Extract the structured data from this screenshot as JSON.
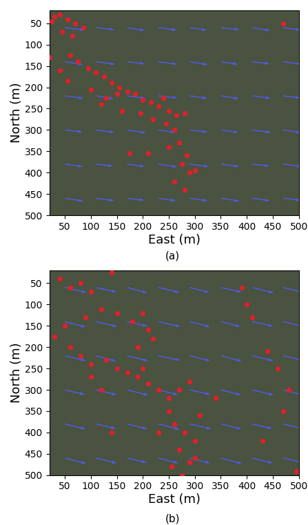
{
  "chart_data": [
    {
      "type": "scatter",
      "caption": "(a)",
      "x_label": "East (m)",
      "y_label": "North (m)",
      "xlim": [
        20,
        500
      ],
      "ylim": [
        500,
        20
      ],
      "xticks": [
        50,
        100,
        150,
        200,
        250,
        300,
        350,
        400,
        450,
        500
      ],
      "yticks": [
        50,
        100,
        150,
        200,
        250,
        300,
        350,
        400,
        450,
        500
      ],
      "grid": false,
      "points": {
        "color": "#e0202a",
        "marker": "o",
        "x": [
          30,
          40,
          55,
          70,
          85,
          45,
          65,
          25,
          20,
          60,
          75,
          95,
          40,
          55,
          110,
          125,
          140,
          155,
          170,
          100,
          130,
          150,
          185,
          200,
          215,
          230,
          240,
          250,
          265,
          280,
          120,
          160,
          195,
          220,
          245,
          260,
          250,
          270,
          285,
          275,
          290,
          260,
          300,
          280,
          470,
          210,
          175
        ],
        "y": [
          35,
          30,
          40,
          50,
          60,
          70,
          80,
          45,
          130,
          125,
          140,
          155,
          160,
          185,
          165,
          175,
          190,
          200,
          210,
          205,
          225,
          215,
          215,
          230,
          235,
          245,
          225,
          255,
          265,
          260,
          240,
          255,
          260,
          275,
          285,
          300,
          340,
          330,
          360,
          380,
          400,
          420,
          395,
          440,
          50,
          355,
          355
        ]
      },
      "vectors": {
        "color": "#4f5cf0",
        "x": [
          50,
          110,
          170,
          230,
          290,
          350,
          410,
          470,
          50,
          110,
          170,
          230,
          290,
          350,
          410,
          470,
          50,
          110,
          170,
          230,
          290,
          350,
          410,
          470,
          50,
          110,
          170,
          230,
          290,
          350,
          410,
          470,
          50,
          110,
          170,
          230,
          290,
          350,
          410,
          470,
          50,
          110,
          170,
          230,
          290,
          350,
          410,
          470
        ],
        "y": [
          60,
          60,
          60,
          60,
          60,
          60,
          60,
          60,
          140,
          140,
          140,
          140,
          140,
          140,
          140,
          140,
          220,
          220,
          220,
          220,
          220,
          220,
          220,
          220,
          300,
          300,
          300,
          300,
          300,
          300,
          300,
          300,
          380,
          380,
          380,
          380,
          380,
          380,
          380,
          380,
          460,
          460,
          460,
          460,
          460,
          460,
          460,
          460
        ],
        "u": [
          38,
          36,
          34,
          35,
          33,
          36,
          35,
          34,
          35,
          37,
          34,
          36,
          35,
          33,
          34,
          36,
          36,
          34,
          35,
          37,
          34,
          35,
          36,
          33,
          34,
          35,
          36,
          33,
          35,
          34,
          37,
          35,
          35,
          33,
          34,
          36,
          37,
          35,
          34,
          36,
          36,
          35,
          33,
          34,
          35,
          36,
          35,
          34
        ],
        "v": [
          6,
          5,
          7,
          6,
          6,
          5,
          7,
          6,
          7,
          6,
          5,
          6,
          7,
          6,
          5,
          6,
          6,
          7,
          6,
          5,
          6,
          7,
          6,
          5,
          5,
          6,
          7,
          6,
          5,
          6,
          6,
          7,
          6,
          5,
          6,
          7,
          6,
          6,
          5,
          6,
          7,
          6,
          5,
          6,
          6,
          7,
          6,
          5
        ]
      }
    },
    {
      "type": "scatter",
      "caption": "(b)",
      "x_label": "East (m)",
      "y_label": "North (m)",
      "xlim": [
        20,
        500
      ],
      "ylim": [
        500,
        20
      ],
      "xticks": [
        50,
        100,
        150,
        200,
        250,
        300,
        350,
        400,
        450,
        500
      ],
      "yticks": [
        50,
        100,
        150,
        200,
        250,
        300,
        350,
        400,
        450,
        500
      ],
      "grid": false,
      "points": {
        "color": "#e0202a",
        "marker": "o",
        "x": [
          40,
          60,
          80,
          100,
          140,
          120,
          90,
          50,
          30,
          180,
          200,
          210,
          220,
          190,
          60,
          80,
          100,
          130,
          150,
          170,
          190,
          210,
          230,
          250,
          270,
          290,
          250,
          260,
          280,
          300,
          310,
          270,
          290,
          255,
          275,
          300,
          390,
          400,
          410,
          440,
          460,
          480,
          495,
          430,
          470,
          140,
          120,
          100,
          230,
          340,
          150,
          200
        ],
        "y": [
          40,
          60,
          50,
          70,
          25,
          110,
          130,
          150,
          175,
          140,
          120,
          160,
          180,
          200,
          200,
          220,
          240,
          230,
          250,
          260,
          270,
          285,
          300,
          320,
          300,
          280,
          350,
          380,
          400,
          420,
          360,
          440,
          470,
          480,
          500,
          460,
          60,
          100,
          130,
          210,
          250,
          300,
          490,
          420,
          350,
          400,
          300,
          270,
          400,
          320,
          120,
          250
        ]
      },
      "vectors": {
        "color": "#4f5cf0",
        "x": [
          50,
          110,
          170,
          230,
          290,
          350,
          410,
          470,
          50,
          110,
          170,
          230,
          290,
          350,
          410,
          470,
          50,
          110,
          170,
          230,
          290,
          350,
          410,
          470,
          50,
          110,
          170,
          230,
          290,
          350,
          410,
          470,
          50,
          110,
          170,
          230,
          290,
          350,
          410,
          470,
          50,
          110,
          170,
          230,
          290,
          350,
          410,
          470
        ],
        "y": [
          60,
          60,
          60,
          60,
          60,
          60,
          60,
          60,
          140,
          140,
          140,
          140,
          140,
          140,
          140,
          140,
          220,
          220,
          220,
          220,
          220,
          220,
          220,
          220,
          300,
          300,
          300,
          300,
          300,
          300,
          300,
          300,
          380,
          380,
          380,
          380,
          380,
          380,
          380,
          380,
          460,
          460,
          460,
          460,
          460,
          460,
          460,
          460
        ],
        "u": [
          42,
          40,
          39,
          41,
          38,
          40,
          42,
          39,
          40,
          41,
          39,
          42,
          40,
          38,
          41,
          40,
          41,
          39,
          40,
          42,
          39,
          40,
          41,
          38,
          39,
          40,
          41,
          38,
          40,
          39,
          42,
          40,
          40,
          38,
          39,
          41,
          42,
          40,
          39,
          41,
          41,
          40,
          38,
          39,
          40,
          41,
          40,
          39
        ],
        "v": [
          12,
          11,
          13,
          12,
          12,
          11,
          13,
          12,
          13,
          12,
          11,
          12,
          13,
          12,
          11,
          12,
          12,
          13,
          12,
          11,
          12,
          13,
          12,
          11,
          11,
          12,
          13,
          12,
          11,
          12,
          12,
          13,
          12,
          11,
          12,
          13,
          12,
          12,
          11,
          12,
          13,
          12,
          11,
          12,
          12,
          13,
          12,
          11
        ]
      }
    }
  ]
}
